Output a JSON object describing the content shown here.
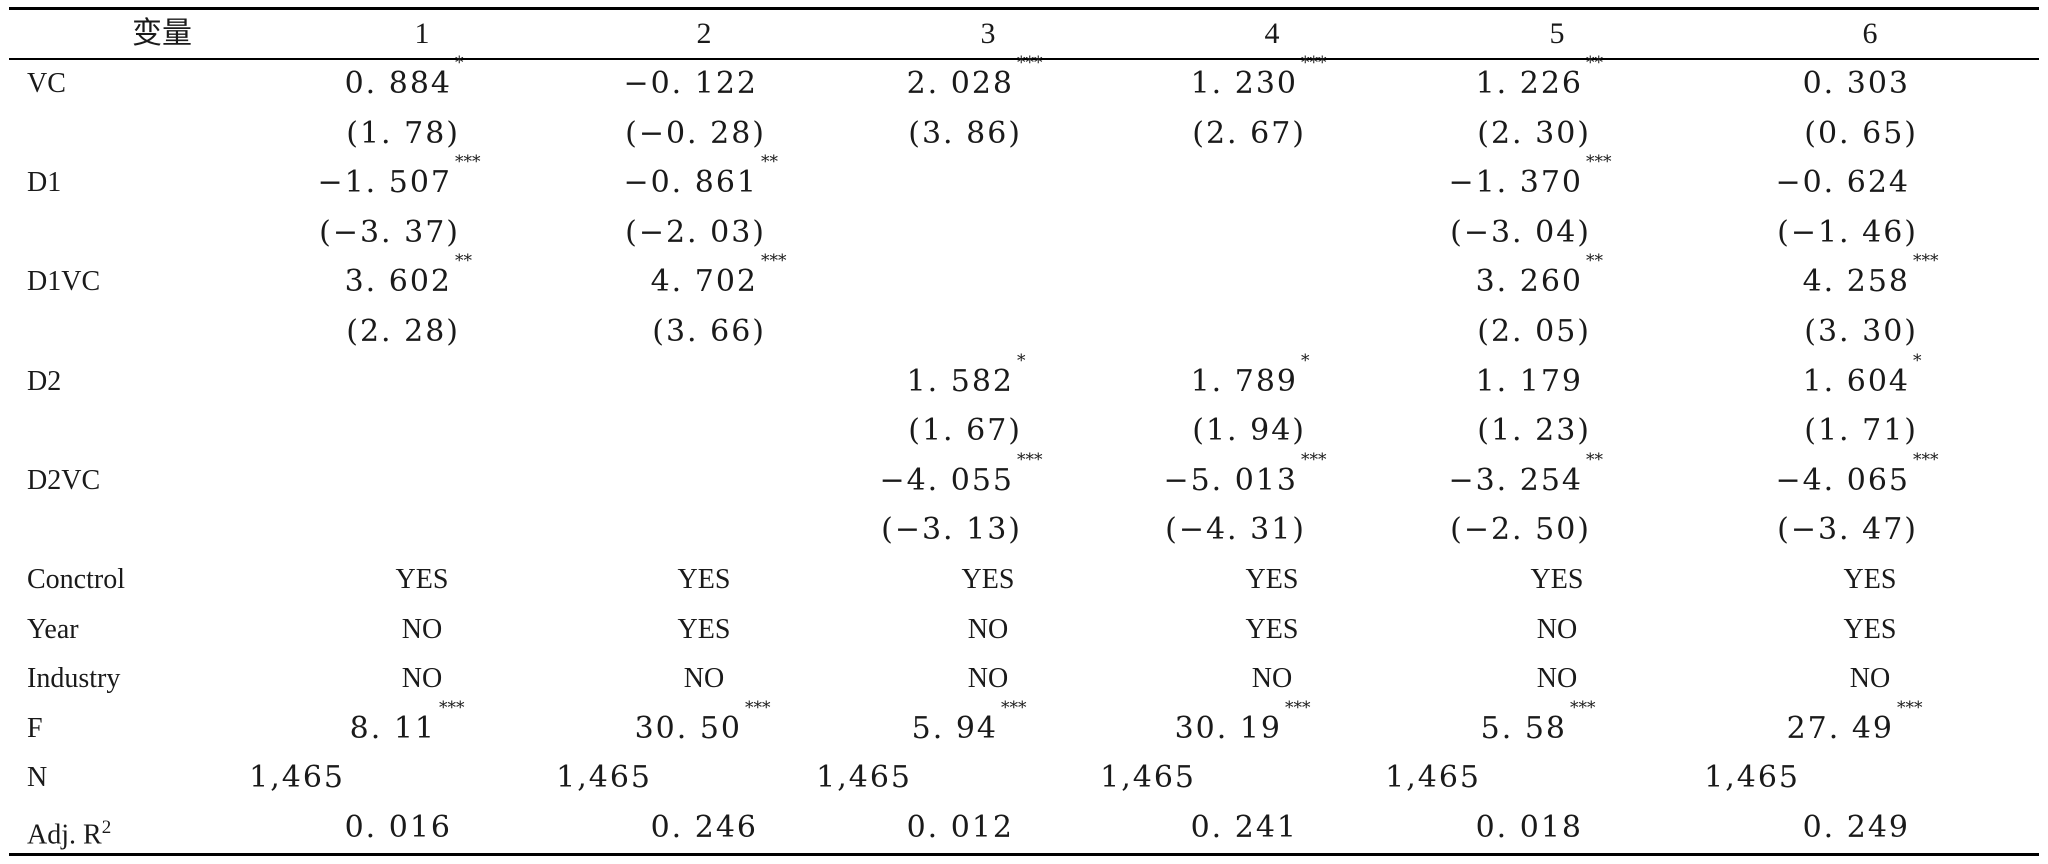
{
  "table": {
    "header": [
      "变量",
      "1",
      "2",
      "3",
      "4",
      "5",
      "6"
    ],
    "rows": [
      {
        "label": "VC",
        "cells": [
          {
            "v": "0. 884",
            "s": "*"
          },
          {
            "v": "−0. 122",
            "s": ""
          },
          {
            "v": "2. 028",
            "s": "***"
          },
          {
            "v": "1. 230",
            "s": "***"
          },
          {
            "v": "1. 226",
            "s": "**"
          },
          {
            "v": "0. 303",
            "s": ""
          }
        ]
      },
      {
        "label": "",
        "cells": [
          {
            "v": "(1. 78)"
          },
          {
            "v": "(−0. 28)"
          },
          {
            "v": "(3. 86)"
          },
          {
            "v": "(2. 67)"
          },
          {
            "v": "(2. 30)"
          },
          {
            "v": "(0. 65)"
          }
        ]
      },
      {
        "label": "D1",
        "cells": [
          {
            "v": "−1. 507",
            "s": "***"
          },
          {
            "v": "−0. 861",
            "s": "**"
          },
          {
            "v": ""
          },
          {
            "v": ""
          },
          {
            "v": "−1. 370",
            "s": "***"
          },
          {
            "v": "−0. 624",
            "s": ""
          }
        ]
      },
      {
        "label": "",
        "cells": [
          {
            "v": "(−3. 37)"
          },
          {
            "v": "(−2. 03)"
          },
          {
            "v": ""
          },
          {
            "v": ""
          },
          {
            "v": "(−3. 04)"
          },
          {
            "v": "(−1. 46)"
          }
        ]
      },
      {
        "label": "D1VC",
        "cells": [
          {
            "v": "3. 602",
            "s": "**"
          },
          {
            "v": "4. 702",
            "s": "***"
          },
          {
            "v": ""
          },
          {
            "v": ""
          },
          {
            "v": "3. 260",
            "s": "**"
          },
          {
            "v": "4. 258",
            "s": "***"
          }
        ]
      },
      {
        "label": "",
        "cells": [
          {
            "v": "(2. 28)"
          },
          {
            "v": "(3. 66)"
          },
          {
            "v": ""
          },
          {
            "v": ""
          },
          {
            "v": "(2. 05)"
          },
          {
            "v": "(3. 30)"
          }
        ]
      },
      {
        "label": "D2",
        "cells": [
          {
            "v": ""
          },
          {
            "v": ""
          },
          {
            "v": "1. 582",
            "s": "*"
          },
          {
            "v": "1. 789",
            "s": "*"
          },
          {
            "v": "1. 179",
            "s": ""
          },
          {
            "v": "1. 604",
            "s": "*"
          }
        ]
      },
      {
        "label": "",
        "cells": [
          {
            "v": ""
          },
          {
            "v": ""
          },
          {
            "v": "(1. 67)"
          },
          {
            "v": "(1. 94)"
          },
          {
            "v": "(1. 23)"
          },
          {
            "v": "(1. 71)"
          }
        ]
      },
      {
        "label": "D2VC",
        "cells": [
          {
            "v": ""
          },
          {
            "v": ""
          },
          {
            "v": "−4. 055",
            "s": "***"
          },
          {
            "v": "−5. 013",
            "s": "***"
          },
          {
            "v": "−3. 254",
            "s": "**"
          },
          {
            "v": "−4. 065",
            "s": "***"
          }
        ]
      },
      {
        "label": "",
        "cells": [
          {
            "v": ""
          },
          {
            "v": ""
          },
          {
            "v": "(−3. 13)"
          },
          {
            "v": "(−4. 31)"
          },
          {
            "v": "(−2. 50)"
          },
          {
            "v": "(−3. 47)"
          }
        ]
      },
      {
        "label": "Conctrol",
        "cells": [
          {
            "v": "YES"
          },
          {
            "v": "YES"
          },
          {
            "v": "YES"
          },
          {
            "v": "YES"
          },
          {
            "v": "YES"
          },
          {
            "v": "YES"
          }
        ]
      },
      {
        "label": "Year",
        "cells": [
          {
            "v": "NO"
          },
          {
            "v": "YES"
          },
          {
            "v": "NO"
          },
          {
            "v": "YES"
          },
          {
            "v": "NO"
          },
          {
            "v": "YES"
          }
        ]
      },
      {
        "label": "Industry",
        "cells": [
          {
            "v": "NO"
          },
          {
            "v": "NO"
          },
          {
            "v": "NO"
          },
          {
            "v": "NO"
          },
          {
            "v": "NO"
          },
          {
            "v": "NO"
          }
        ]
      },
      {
        "label": "F",
        "cells": [
          {
            "v": "8. 11",
            "s": "***"
          },
          {
            "v": "30. 50",
            "s": "***"
          },
          {
            "v": "5. 94",
            "s": "***"
          },
          {
            "v": "30. 19",
            "s": "***"
          },
          {
            "v": "5. 58",
            "s": "***"
          },
          {
            "v": "27. 49",
            "s": "***"
          }
        ]
      },
      {
        "label": "N",
        "cells": [
          {
            "v": "1,465"
          },
          {
            "v": "1,465"
          },
          {
            "v": "1,465"
          },
          {
            "v": "1,465"
          },
          {
            "v": "1,465"
          },
          {
            "v": "1,465"
          }
        ]
      },
      {
        "label": "Adj. R",
        "label_sup": "2",
        "cells": [
          {
            "v": "0. 016"
          },
          {
            "v": "0. 246"
          },
          {
            "v": "0. 012"
          },
          {
            "v": "0. 241"
          },
          {
            "v": "0. 018"
          },
          {
            "v": "0. 249"
          }
        ]
      }
    ]
  }
}
